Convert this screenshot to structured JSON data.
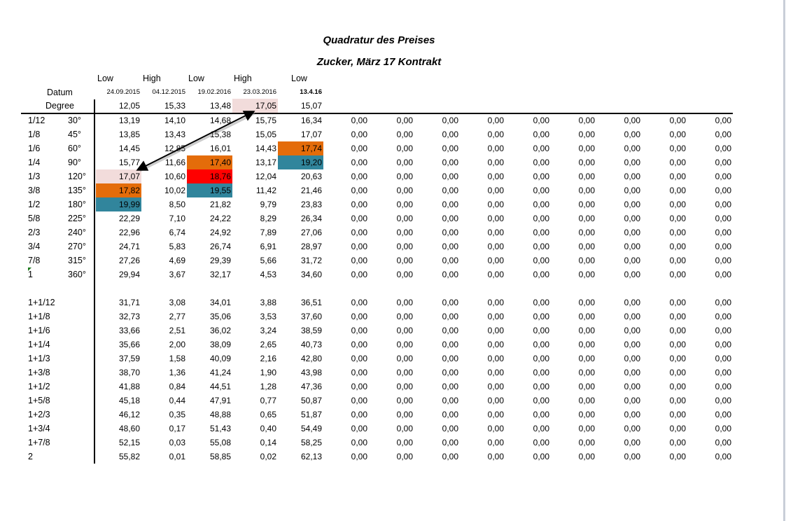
{
  "title": "Quadratur des Preises",
  "subtitle": "Zucker, März 17 Kontrakt",
  "column_types": [
    "Low",
    "High",
    "Low",
    "High",
    "Low"
  ],
  "datum_label": "Datum",
  "dates": [
    "24.09.2015",
    "04.12.2015",
    "19.02.2016",
    "23.03.2016",
    "13.4.16"
  ],
  "degree_label": "Degree",
  "degree_values": [
    "12,05",
    "15,33",
    "13,48",
    "17,05",
    "15,07"
  ],
  "degree_highlights": {
    "3": "#f2dcdb"
  },
  "colors": {
    "pink": "#f2dcdb",
    "orange": "#e46c0a",
    "red": "#ff0000",
    "teal": "#31859c"
  },
  "rows": [
    {
      "label": "1/12",
      "deg": "30°",
      "values": [
        "13,19",
        "14,10",
        "14,68",
        "15,75",
        "16,34"
      ]
    },
    {
      "label": "1/8",
      "deg": "45°",
      "values": [
        "13,85",
        "13,43",
        "15,38",
        "15,05",
        "17,07"
      ]
    },
    {
      "label": "1/6",
      "deg": "60°",
      "values": [
        "14,45",
        "12,85",
        "16,01",
        "14,43",
        "17,74"
      ],
      "highlights": {
        "4": "#e46c0a"
      }
    },
    {
      "label": "1/4",
      "deg": "90°",
      "values": [
        "15,77",
        "11,66",
        "17,40",
        "13,17",
        "19,20"
      ],
      "highlights": {
        "2": "#e46c0a",
        "4": "#31859c"
      }
    },
    {
      "label": "1/3",
      "deg": "120°",
      "values": [
        "17,07",
        "10,60",
        "18,76",
        "12,04",
        "20,63"
      ],
      "highlights": {
        "0": "#f2dcdb",
        "2": "#ff0000"
      }
    },
    {
      "label": "3/8",
      "deg": "135°",
      "values": [
        "17,82",
        "10,02",
        "19,55",
        "11,42",
        "21,46"
      ],
      "highlights": {
        "0": "#e46c0a",
        "2": "#31859c"
      }
    },
    {
      "label": "1/2",
      "deg": "180°",
      "values": [
        "19,99",
        "8,50",
        "21,82",
        "9,79",
        "23,83"
      ],
      "highlights": {
        "0": "#31859c"
      }
    },
    {
      "label": "5/8",
      "deg": "225°",
      "values": [
        "22,29",
        "7,10",
        "24,22",
        "8,29",
        "26,34"
      ]
    },
    {
      "label": "2/3",
      "deg": "240°",
      "values": [
        "22,96",
        "6,74",
        "24,92",
        "7,89",
        "27,06"
      ]
    },
    {
      "label": "3/4",
      "deg": "270°",
      "values": [
        "24,71",
        "5,83",
        "26,74",
        "6,91",
        "28,97"
      ]
    },
    {
      "label": "7/8",
      "deg": "315°",
      "values": [
        "27,26",
        "4,69",
        "29,39",
        "5,66",
        "31,72"
      ]
    },
    {
      "label": "1",
      "deg": "360°",
      "values": [
        "29,94",
        "3,67",
        "32,17",
        "4,53",
        "34,60"
      ]
    },
    null,
    {
      "label": "1+1/12",
      "deg": "",
      "values": [
        "31,71",
        "3,08",
        "34,01",
        "3,88",
        "36,51"
      ]
    },
    {
      "label": "1+1/8",
      "deg": "",
      "values": [
        "32,73",
        "2,77",
        "35,06",
        "3,53",
        "37,60"
      ]
    },
    {
      "label": "1+1/6",
      "deg": "",
      "values": [
        "33,66",
        "2,51",
        "36,02",
        "3,24",
        "38,59"
      ]
    },
    {
      "label": "1+1/4",
      "deg": "",
      "values": [
        "35,66",
        "2,00",
        "38,09",
        "2,65",
        "40,73"
      ]
    },
    {
      "label": "1+1/3",
      "deg": "",
      "values": [
        "37,59",
        "1,58",
        "40,09",
        "2,16",
        "42,80"
      ]
    },
    {
      "label": "1+3/8",
      "deg": "",
      "values": [
        "38,70",
        "1,36",
        "41,24",
        "1,90",
        "43,98"
      ]
    },
    {
      "label": "1+1/2",
      "deg": "",
      "values": [
        "41,88",
        "0,84",
        "44,51",
        "1,28",
        "47,36"
      ]
    },
    {
      "label": "1+5/8",
      "deg": "",
      "values": [
        "45,18",
        "0,44",
        "47,91",
        "0,77",
        "50,87"
      ]
    },
    {
      "label": "1+2/3",
      "deg": "",
      "values": [
        "46,12",
        "0,35",
        "48,88",
        "0,65",
        "51,87"
      ]
    },
    {
      "label": "1+3/4",
      "deg": "",
      "values": [
        "48,60",
        "0,17",
        "51,43",
        "0,40",
        "54,49"
      ]
    },
    {
      "label": "1+7/8",
      "deg": "",
      "values": [
        "52,15",
        "0,03",
        "55,08",
        "0,14",
        "58,25"
      ]
    },
    {
      "label": "2",
      "deg": "",
      "values": [
        "55,82",
        "0,01",
        "58,85",
        "0,02",
        "62,13"
      ]
    }
  ],
  "empty_value": "0,00",
  "empty_columns": 9
}
